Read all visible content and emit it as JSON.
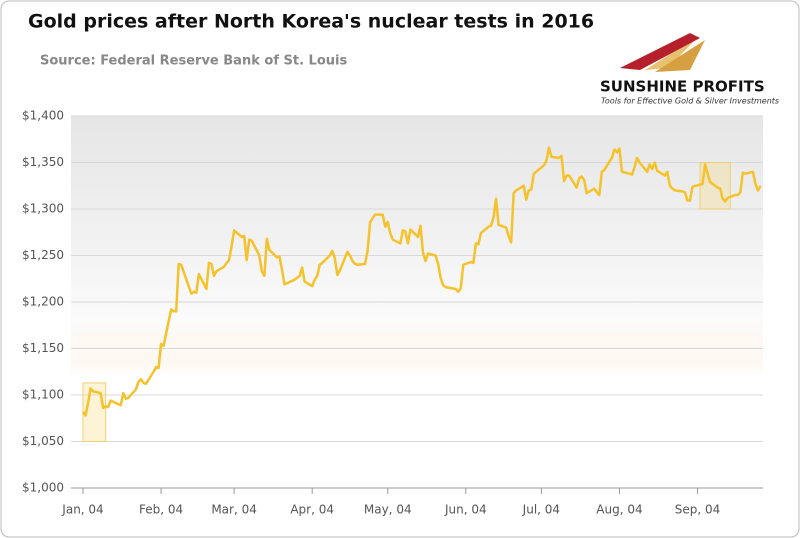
{
  "chart_data": {
    "type": "line",
    "title": "Gold prices after North Korea's nuclear tests in 2016",
    "subtitle": "Source: Federal Reserve Bank of St. Louis",
    "logo": {
      "name": "SUNSHINE PROFITS",
      "tagline": "Tools for Effective Gold & Silver Investments"
    },
    "x": [
      "2016-01-04",
      "2016-01-05",
      "2016-01-06",
      "2016-01-07",
      "2016-01-08",
      "2016-01-11",
      "2016-01-12",
      "2016-01-13",
      "2016-01-14",
      "2016-01-15",
      "2016-01-19",
      "2016-01-20",
      "2016-01-21",
      "2016-01-22",
      "2016-01-25",
      "2016-01-26",
      "2016-01-27",
      "2016-01-28",
      "2016-01-29",
      "2016-02-01",
      "2016-02-02",
      "2016-02-03",
      "2016-02-04",
      "2016-02-05",
      "2016-02-08",
      "2016-02-09",
      "2016-02-10",
      "2016-02-11",
      "2016-02-12",
      "2016-02-16",
      "2016-02-17",
      "2016-02-18",
      "2016-02-19",
      "2016-02-22",
      "2016-02-23",
      "2016-02-24",
      "2016-02-25",
      "2016-02-26",
      "2016-02-29",
      "2016-03-01",
      "2016-03-02",
      "2016-03-03",
      "2016-03-04",
      "2016-03-07",
      "2016-03-08",
      "2016-03-09",
      "2016-03-10",
      "2016-03-11",
      "2016-03-14",
      "2016-03-15",
      "2016-03-16",
      "2016-03-17",
      "2016-03-18",
      "2016-03-21",
      "2016-03-22",
      "2016-03-23",
      "2016-03-24",
      "2016-03-28",
      "2016-03-29",
      "2016-03-30",
      "2016-03-31",
      "2016-04-01",
      "2016-04-04",
      "2016-04-05",
      "2016-04-06",
      "2016-04-07",
      "2016-04-08",
      "2016-04-11",
      "2016-04-12",
      "2016-04-13",
      "2016-04-14",
      "2016-04-15",
      "2016-04-18",
      "2016-04-19",
      "2016-04-20",
      "2016-04-21",
      "2016-04-22",
      "2016-04-25",
      "2016-04-26",
      "2016-04-27",
      "2016-04-28",
      "2016-04-29",
      "2016-05-02",
      "2016-05-03",
      "2016-05-04",
      "2016-05-05",
      "2016-05-06",
      "2016-05-09",
      "2016-05-10",
      "2016-05-11",
      "2016-05-12",
      "2016-05-13",
      "2016-05-16",
      "2016-05-17",
      "2016-05-18",
      "2016-05-19",
      "2016-05-20",
      "2016-05-23",
      "2016-05-24",
      "2016-05-25",
      "2016-05-26",
      "2016-05-27",
      "2016-05-31",
      "2016-06-01",
      "2016-06-02",
      "2016-06-03",
      "2016-06-06",
      "2016-06-07",
      "2016-06-08",
      "2016-06-09",
      "2016-06-10",
      "2016-06-13",
      "2016-06-14",
      "2016-06-15",
      "2016-06-16",
      "2016-06-17",
      "2016-06-20",
      "2016-06-21",
      "2016-06-22",
      "2016-06-23",
      "2016-06-24",
      "2016-06-27",
      "2016-06-28",
      "2016-06-29",
      "2016-06-30",
      "2016-07-01",
      "2016-07-05",
      "2016-07-06",
      "2016-07-07",
      "2016-07-08",
      "2016-07-11",
      "2016-07-12",
      "2016-07-13",
      "2016-07-14",
      "2016-07-15",
      "2016-07-18",
      "2016-07-19",
      "2016-07-20",
      "2016-07-21",
      "2016-07-22",
      "2016-07-25",
      "2016-07-26",
      "2016-07-27",
      "2016-07-28",
      "2016-07-29",
      "2016-08-01",
      "2016-08-02",
      "2016-08-03",
      "2016-08-04",
      "2016-08-05",
      "2016-08-08",
      "2016-08-09",
      "2016-08-10",
      "2016-08-11",
      "2016-08-12",
      "2016-08-15",
      "2016-08-16",
      "2016-08-17",
      "2016-08-18",
      "2016-08-19",
      "2016-08-22",
      "2016-08-23",
      "2016-08-24",
      "2016-08-25",
      "2016-08-26",
      "2016-08-29",
      "2016-08-30",
      "2016-08-31",
      "2016-09-01",
      "2016-09-02",
      "2016-09-06",
      "2016-09-07",
      "2016-09-08",
      "2016-09-09",
      "2016-09-12",
      "2016-09-13",
      "2016-09-14",
      "2016-09-15",
      "2016-09-16",
      "2016-09-19",
      "2016-09-20",
      "2016-09-21",
      "2016-09-22",
      "2016-09-23",
      "2016-09-26",
      "2016-09-27",
      "2016-09-28",
      "2016-09-29"
    ],
    "series": [
      {
        "color": "#f5c22b",
        "values": [
          1082,
          1078,
          1091,
          1107,
          1104,
          1102,
          1086,
          1088,
          1087,
          1094,
          1089,
          1102,
          1096,
          1097,
          1106,
          1114,
          1117,
          1113,
          1112,
          1125,
          1130,
          1129,
          1155,
          1153,
          1192,
          1190,
          1190,
          1241,
          1240,
          1209,
          1211,
          1210,
          1230,
          1214,
          1242,
          1241,
          1228,
          1233,
          1238,
          1242,
          1245,
          1260,
          1277,
          1270,
          1271,
          1245,
          1267,
          1266,
          1250,
          1233,
          1228,
          1268,
          1256,
          1248,
          1249,
          1235,
          1219,
          1224,
          1226,
          1228,
          1237,
          1222,
          1217,
          1224,
          1228,
          1240,
          1242,
          1250,
          1255,
          1247,
          1229,
          1234,
          1254,
          1250,
          1244,
          1241,
          1240,
          1241,
          1255,
          1286,
          1290,
          1294,
          1294,
          1281,
          1286,
          1274,
          1267,
          1263,
          1277,
          1276,
          1263,
          1278,
          1270,
          1282,
          1253,
          1244,
          1252,
          1250,
          1241,
          1226,
          1218,
          1216,
          1214,
          1211,
          1215,
          1240,
          1243,
          1242,
          1263,
          1262,
          1274,
          1281,
          1282,
          1291,
          1311,
          1283,
          1280,
          1271,
          1264,
          1317,
          1320,
          1325,
          1310,
          1320,
          1321,
          1338,
          1347,
          1352,
          1366,
          1356,
          1355,
          1357,
          1330,
          1336,
          1336,
          1323,
          1333,
          1335,
          1331,
          1317,
          1322,
          1318,
          1315,
          1340,
          1342,
          1355,
          1364,
          1361,
          1365,
          1340,
          1338,
          1337,
          1345,
          1355,
          1350,
          1340,
          1348,
          1343,
          1350,
          1341,
          1336,
          1340,
          1325,
          1322,
          1320,
          1319,
          1318,
          1309,
          1309,
          1324,
          1327,
          1348,
          1338,
          1329,
          1323,
          1322,
          1311,
          1308,
          1312,
          1315,
          1315,
          1318,
          1339,
          1338,
          1340,
          1327,
          1320,
          1325
        ]
      }
    ],
    "highlights": [
      {
        "x": [
          "2016-01-04",
          "2016-01-13"
        ],
        "y": [
          1050,
          1113
        ]
      },
      {
        "x": [
          "2016-09-05",
          "2016-09-17"
        ],
        "y": [
          1300,
          1350
        ]
      }
    ],
    "xlim": [
      "2016-01-04",
      "2016-09-30"
    ],
    "xticks": [
      {
        "value": "2016-01-04",
        "label": "Jan, 04"
      },
      {
        "value": "2016-02-04",
        "label": "Feb, 04"
      },
      {
        "value": "2016-03-04",
        "label": "Mar, 04"
      },
      {
        "value": "2016-04-04",
        "label": "Apr, 04"
      },
      {
        "value": "2016-05-04",
        "label": "May, 04"
      },
      {
        "value": "2016-06-04",
        "label": "Jun, 04"
      },
      {
        "value": "2016-07-04",
        "label": "Jul, 04"
      },
      {
        "value": "2016-08-04",
        "label": "Aug, 04"
      },
      {
        "value": "2016-09-04",
        "label": "Sep, 04"
      }
    ],
    "ylim": [
      1000,
      1400
    ],
    "yticks": [
      {
        "value": 1000,
        "label": "$1,000"
      },
      {
        "value": 1050,
        "label": "$1,050"
      },
      {
        "value": 1100,
        "label": "$1,100"
      },
      {
        "value": 1150,
        "label": "$1,150"
      },
      {
        "value": 1200,
        "label": "$1,200"
      },
      {
        "value": 1250,
        "label": "$1,250"
      },
      {
        "value": 1300,
        "label": "$1,300"
      },
      {
        "value": 1350,
        "label": "$1,350"
      },
      {
        "value": 1400,
        "label": "$1,400"
      }
    ],
    "grid": true
  }
}
